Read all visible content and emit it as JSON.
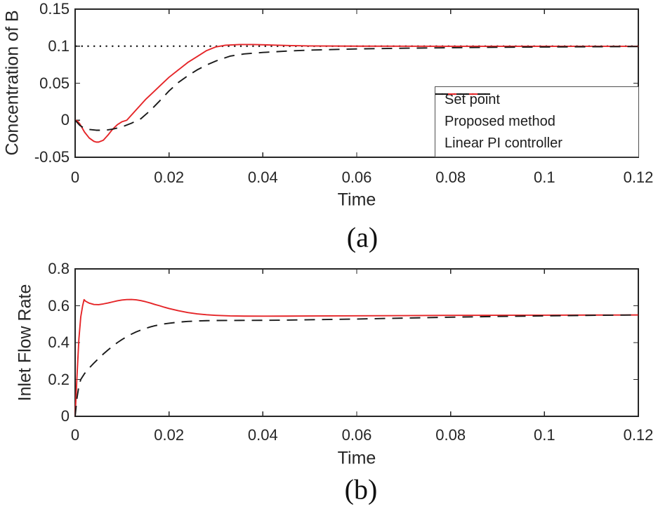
{
  "figure": {
    "background": "#ffffff",
    "axis_color": "#262626",
    "text_color": "#262626",
    "red_color": "#e52528",
    "black_line_color": "#1a1a1a"
  },
  "chart_data": [
    {
      "type": "line",
      "caption": "(a)",
      "xlabel": "Time",
      "ylabel": "Concentration of B",
      "xlim": [
        0,
        0.12
      ],
      "ylim": [
        -0.05,
        0.15
      ],
      "grid": false,
      "box": true,
      "x_ticks": [
        0,
        0.02,
        0.04,
        0.06,
        0.08,
        0.1,
        0.12
      ],
      "x_tick_labels": [
        "0",
        "0.02",
        "0.04",
        "0.06",
        "0.08",
        "0.1",
        "0.12"
      ],
      "y_ticks": [
        -0.05,
        0,
        0.05,
        0.1,
        0.15
      ],
      "y_tick_labels": [
        "-0.05",
        "0",
        "0.05",
        "0.1",
        "0.15"
      ],
      "legend_position": "inside-bottom-right",
      "series": [
        {
          "name": "Set point",
          "style": "dotted",
          "color": "#1a1a1a",
          "x": [
            0,
            0.12
          ],
          "y": [
            0.1,
            0.1
          ]
        },
        {
          "name": "Proposed method",
          "style": "solid",
          "color": "#e52528",
          "x": [
            0,
            0.0005,
            0.001,
            0.002,
            0.003,
            0.004,
            0.0045,
            0.005,
            0.006,
            0.007,
            0.008,
            0.009,
            0.01,
            0.011,
            0.012,
            0.013,
            0.014,
            0.015,
            0.016,
            0.017,
            0.018,
            0.02,
            0.022,
            0.024,
            0.026,
            0.028,
            0.03,
            0.032,
            0.035,
            0.038,
            0.042,
            0.046,
            0.05,
            0.06,
            0.07,
            0.08,
            0.1,
            0.12
          ],
          "y": [
            0,
            -0.001,
            -0.005,
            -0.016,
            -0.024,
            -0.0285,
            -0.0295,
            -0.0295,
            -0.027,
            -0.02,
            -0.012,
            -0.006,
            -0.002,
            0.0,
            0.007,
            0.014,
            0.021,
            0.028,
            0.034,
            0.04,
            0.046,
            0.058,
            0.068,
            0.078,
            0.086,
            0.094,
            0.099,
            0.1012,
            0.1022,
            0.1022,
            0.1015,
            0.1008,
            0.1003,
            0.1,
            0.0999,
            0.0998,
            0.0998,
            0.0998
          ]
        },
        {
          "name": "Linear PI controller",
          "style": "dashed",
          "color": "#1a1a1a",
          "x": [
            0,
            0.001,
            0.002,
            0.003,
            0.0045,
            0.006,
            0.007,
            0.008,
            0.01,
            0.012,
            0.014,
            0.016,
            0.018,
            0.02,
            0.022,
            0.024,
            0.026,
            0.028,
            0.03,
            0.033,
            0.036,
            0.04,
            0.045,
            0.05,
            0.06,
            0.07,
            0.08,
            0.09,
            0.1,
            0.11,
            0.12
          ],
          "y": [
            0,
            -0.007,
            -0.011,
            -0.0125,
            -0.0135,
            -0.0135,
            -0.013,
            -0.012,
            -0.009,
            -0.004,
            0.002,
            0.013,
            0.026,
            0.0395,
            0.051,
            0.06,
            0.068,
            0.0745,
            0.08,
            0.0865,
            0.0895,
            0.0915,
            0.0933,
            0.0947,
            0.0963,
            0.0972,
            0.0979,
            0.0985,
            0.0989,
            0.0992,
            0.0995
          ]
        }
      ]
    },
    {
      "type": "line",
      "caption": "(b)",
      "xlabel": "Time",
      "ylabel": "Inlet Flow Rate",
      "xlim": [
        0,
        0.12
      ],
      "ylim": [
        0,
        0.8
      ],
      "grid": false,
      "box": true,
      "x_ticks": [
        0,
        0.02,
        0.04,
        0.06,
        0.08,
        0.1,
        0.12
      ],
      "x_tick_labels": [
        "0",
        "0.02",
        "0.04",
        "0.06",
        "0.08",
        "0.1",
        "0.12"
      ],
      "y_ticks": [
        0,
        0.2,
        0.4,
        0.6,
        0.8
      ],
      "y_tick_labels": [
        "0",
        "0.2",
        "0.4",
        "0.6",
        "0.8"
      ],
      "legend_position": "none",
      "series": [
        {
          "name": "Proposed method",
          "style": "solid",
          "color": "#e52528",
          "x": [
            0,
            0.0004,
            0.0008,
            0.0012,
            0.0016,
            0.0019,
            0.0022,
            0.003,
            0.004,
            0.005,
            0.006,
            0.007,
            0.008,
            0.009,
            0.01,
            0.011,
            0.012,
            0.013,
            0.014,
            0.015,
            0.016,
            0.017,
            0.018,
            0.019,
            0.02,
            0.022,
            0.024,
            0.026,
            0.028,
            0.03,
            0.033,
            0.036,
            0.04,
            0.045,
            0.05,
            0.06,
            0.07,
            0.08,
            0.09,
            0.1,
            0.11,
            0.12
          ],
          "y": [
            0,
            0.22,
            0.42,
            0.54,
            0.6,
            0.633,
            0.625,
            0.614,
            0.607,
            0.606,
            0.61,
            0.615,
            0.621,
            0.627,
            0.631,
            0.6335,
            0.634,
            0.632,
            0.628,
            0.622,
            0.615,
            0.607,
            0.6,
            0.592,
            0.585,
            0.573,
            0.563,
            0.556,
            0.551,
            0.548,
            0.545,
            0.5438,
            0.5435,
            0.5438,
            0.5445,
            0.5455,
            0.5465,
            0.5478,
            0.5485,
            0.549,
            0.5495,
            0.55
          ]
        },
        {
          "name": "Linear PI controller",
          "style": "dashed",
          "color": "#1a1a1a",
          "x": [
            0,
            0.0004,
            0.0008,
            0.0012,
            0.002,
            0.003,
            0.004,
            0.005,
            0.006,
            0.007,
            0.008,
            0.009,
            0.01,
            0.011,
            0.012,
            0.013,
            0.014,
            0.015,
            0.016,
            0.017,
            0.018,
            0.019,
            0.02,
            0.022,
            0.024,
            0.026,
            0.028,
            0.03,
            0.035,
            0.04,
            0.045,
            0.05,
            0.06,
            0.07,
            0.08,
            0.09,
            0.1,
            0.11,
            0.12
          ],
          "y": [
            0,
            0.1,
            0.165,
            0.2,
            0.232,
            0.262,
            0.289,
            0.314,
            0.338,
            0.36,
            0.381,
            0.4,
            0.417,
            0.432,
            0.446,
            0.458,
            0.468,
            0.477,
            0.485,
            0.4915,
            0.497,
            0.5015,
            0.505,
            0.511,
            0.515,
            0.5175,
            0.519,
            0.52,
            0.5205,
            0.521,
            0.522,
            0.524,
            0.528,
            0.533,
            0.538,
            0.542,
            0.545,
            0.548,
            0.55
          ]
        }
      ]
    }
  ]
}
